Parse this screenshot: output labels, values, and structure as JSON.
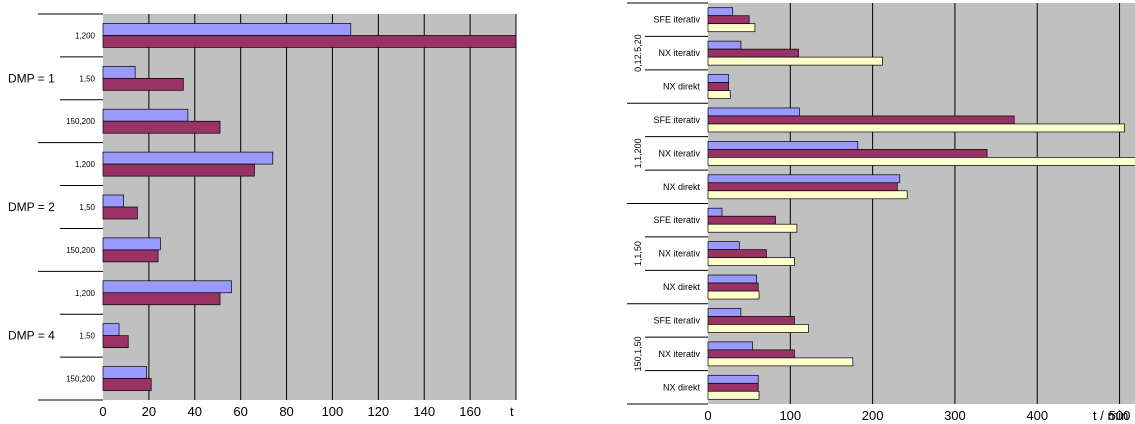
{
  "chart_data": [
    {
      "type": "bar",
      "orientation": "horizontal",
      "xlabel": "t",
      "xlim": [
        0,
        180
      ],
      "xticks": [
        "0",
        "20",
        "40",
        "60",
        "80",
        "100",
        "120",
        "140",
        "160"
      ],
      "groups": [
        {
          "label": "DMP = 1",
          "categories": [
            {
              "label": "1,200",
              "values": [
                108,
                180
              ]
            },
            {
              "label": "1,50",
              "values": [
                14,
                35
              ]
            },
            {
              "label": "150,200",
              "values": [
                37,
                51
              ]
            }
          ]
        },
        {
          "label": "DMP = 2",
          "categories": [
            {
              "label": "1,200",
              "values": [
                74,
                66
              ]
            },
            {
              "label": "1,50",
              "values": [
                9,
                15
              ]
            },
            {
              "label": "150,200",
              "values": [
                25,
                24
              ]
            }
          ]
        },
        {
          "label": "DMP = 4",
          "categories": [
            {
              "label": "1,200",
              "values": [
                56,
                51
              ]
            },
            {
              "label": "1,50",
              "values": [
                7,
                11
              ]
            },
            {
              "label": "150,200",
              "values": [
                19,
                21
              ]
            }
          ]
        }
      ],
      "series_colors": [
        "#9999ff",
        "#993366"
      ],
      "grid": true,
      "background": "#c0c0c0"
    },
    {
      "type": "bar",
      "orientation": "horizontal",
      "xlabel": "t / min",
      "xlim": [
        0,
        520
      ],
      "xticks": [
        "0",
        "100",
        "200",
        "300",
        "400",
        "500"
      ],
      "groups": [
        {
          "label": "0,12.5,20",
          "categories": [
            {
              "label": "SFE iterativ",
              "values": [
                30,
                50,
                57
              ]
            },
            {
              "label": "NX iterativ",
              "values": [
                40,
                110,
                212
              ]
            },
            {
              "label": "NX direkt",
              "values": [
                25,
                25,
                27
              ]
            }
          ]
        },
        {
          "label": "1,1,200",
          "categories": [
            {
              "label": "SFE iterativ",
              "values": [
                111,
                372,
                506
              ]
            },
            {
              "label": "NX iterativ",
              "values": [
                182,
                339,
                524
              ]
            },
            {
              "label": "NX direkt",
              "values": [
                233,
                230,
                242
              ]
            }
          ]
        },
        {
          "label": "1,1,50",
          "categories": [
            {
              "label": "SFE iterativ",
              "values": [
                17,
                82,
                108
              ]
            },
            {
              "label": "NX iterativ",
              "values": [
                38,
                71,
                105
              ]
            },
            {
              "label": "NX direkt",
              "values": [
                59,
                61,
                62
              ]
            }
          ]
        },
        {
          "label": "150,1,50",
          "categories": [
            {
              "label": "SFE iterativ",
              "values": [
                40,
                105,
                122
              ]
            },
            {
              "label": "NX iterativ",
              "values": [
                54,
                105,
                176
              ]
            },
            {
              "label": "NX direkt",
              "values": [
                61,
                61,
                62
              ]
            }
          ]
        }
      ],
      "series_colors": [
        "#9999ff",
        "#993366",
        "#ffffcc"
      ],
      "grid": true,
      "background": "#c0c0c0"
    }
  ]
}
